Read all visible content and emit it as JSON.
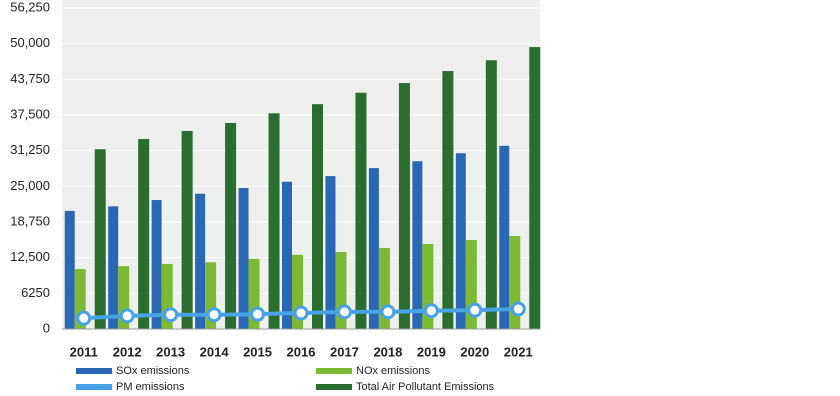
{
  "chart_data": {
    "type": "bar",
    "categories": [
      "2011",
      "2012",
      "2013",
      "2014",
      "2015",
      "2016",
      "2017",
      "2018",
      "2019",
      "2020",
      "2021"
    ],
    "series": [
      {
        "name": "SOx emissions",
        "color": "#2a68b5",
        "values": [
          20700,
          21500,
          22600,
          23700,
          24700,
          25800,
          26800,
          28200,
          29400,
          30800,
          32100
        ]
      },
      {
        "name": "NOx emissions",
        "color": "#7cb934",
        "values": [
          10500,
          11000,
          11400,
          11700,
          12300,
          13000,
          13500,
          14200,
          14900,
          15600,
          16300
        ]
      },
      {
        "name": "PM emissions",
        "color": "#48a2e6",
        "type": "line",
        "values": [
          1900,
          2300,
          2500,
          2500,
          2600,
          2800,
          3000,
          3000,
          3200,
          3300,
          3500
        ]
      },
      {
        "name": "Total Air Pollutant Emissions",
        "color": "#2a6d2e",
        "values": [
          31500,
          33300,
          34700,
          36100,
          37800,
          39400,
          41400,
          43100,
          45200,
          47100,
          49400
        ]
      }
    ],
    "ylim": [
      0,
      56250
    ],
    "yticks": [
      0,
      6250,
      {
        "value": 12500,
        "label": "12,500"
      },
      {
        "value": 18750,
        "label": "18,750"
      },
      {
        "value": 25000,
        "label": "25,000"
      },
      {
        "value": 31250,
        "label": "31,250"
      },
      {
        "value": 37500,
        "label": "37,500"
      },
      {
        "value": 43750,
        "label": "43,750"
      },
      {
        "value": 50000,
        "label": "50,000"
      },
      {
        "value": 56250,
        "label": "56,250"
      }
    ],
    "grid": true
  }
}
